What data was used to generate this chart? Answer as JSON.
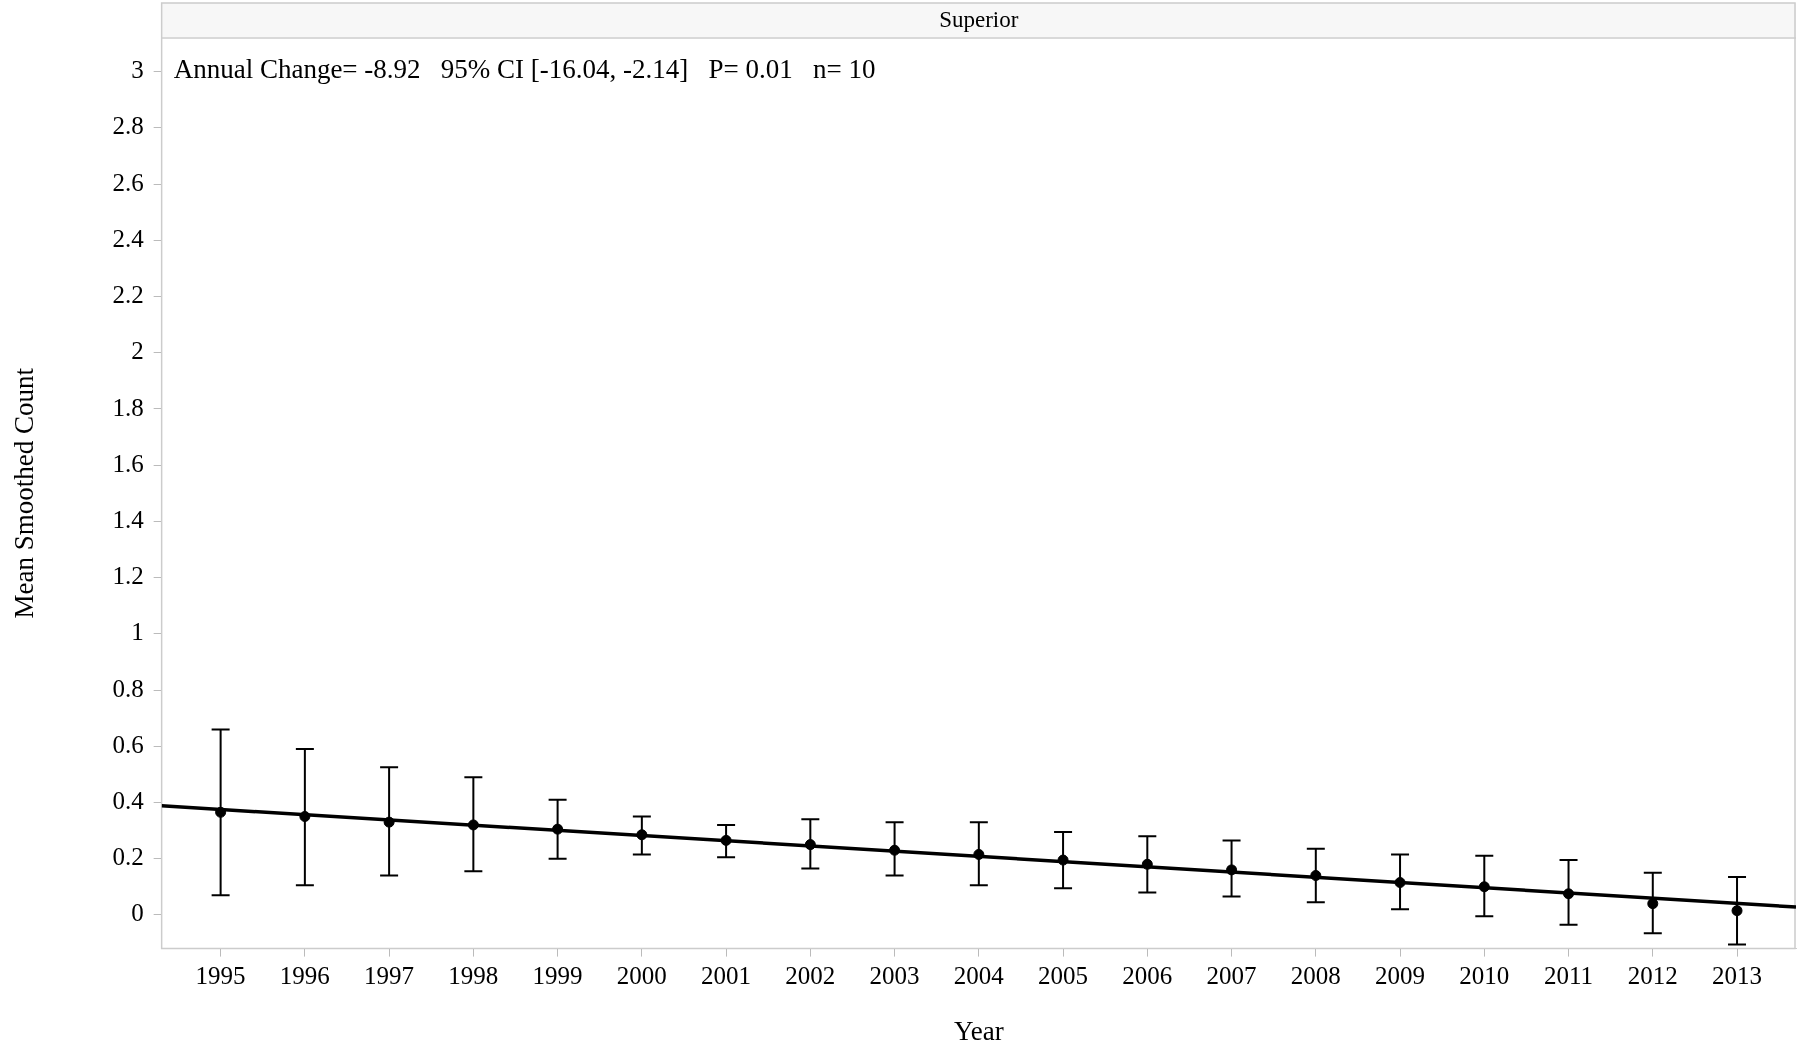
{
  "chart_data": {
    "type": "scatter",
    "title": "Superior",
    "xlabel": "Year",
    "ylabel": "Mean Smoothed Count",
    "annotations": [
      "Annual Change= -8.92   95% CI [-16.04, -2.14]   P= 0.01   n= 10"
    ],
    "xlim": [
      1994.3,
      2013.7
    ],
    "xticks": [
      1995,
      1996,
      1997,
      1998,
      1999,
      2000,
      2001,
      2002,
      2003,
      2004,
      2005,
      2006,
      2007,
      2008,
      2009,
      2010,
      2011,
      2012,
      2013
    ],
    "ylim": [
      -0.12,
      3.12
    ],
    "yticks": [
      0,
      0.2,
      0.4,
      0.6,
      0.8,
      1,
      1.2,
      1.4,
      1.6,
      1.8,
      2,
      2.2,
      2.4,
      2.6,
      2.8,
      3
    ],
    "grid": false,
    "legend": false,
    "marker": "circle",
    "series": [
      {
        "color": "#000000",
        "x": [
          1995,
          1996,
          1997,
          1998,
          1999,
          2000,
          2001,
          2002,
          2003,
          2004,
          2005,
          2006,
          2007,
          2008,
          2009,
          2010,
          2011,
          2012,
          2013
        ],
        "values": [
          0.365,
          0.35,
          0.33,
          0.32,
          0.305,
          0.285,
          0.265,
          0.25,
          0.23,
          0.215,
          0.195,
          0.18,
          0.16,
          0.14,
          0.115,
          0.1,
          0.075,
          0.04,
          0.015
        ],
        "errors": [
          [
            0.07,
            0.66
          ],
          [
            0.105,
            0.59
          ],
          [
            0.14,
            0.525
          ],
          [
            0.155,
            0.49
          ],
          [
            0.2,
            0.41
          ],
          [
            0.215,
            0.35
          ],
          [
            0.205,
            0.32
          ],
          [
            0.165,
            0.34
          ],
          [
            0.14,
            0.33
          ],
          [
            0.105,
            0.33
          ],
          [
            0.095,
            0.295
          ],
          [
            0.08,
            0.28
          ],
          [
            0.065,
            0.265
          ],
          [
            0.045,
            0.235
          ],
          [
            0.02,
            0.215
          ],
          [
            -0.005,
            0.21
          ],
          [
            -0.035,
            0.195
          ],
          [
            -0.065,
            0.15
          ],
          [
            -0.105,
            0.135
          ]
        ]
      },
      {
        "type": "line",
        "color": "#000000",
        "line_style": "solid",
        "marker": "none",
        "x": [
          1994.3,
          2013.7
        ],
        "values": [
          0.388,
          0.028
        ]
      }
    ]
  }
}
